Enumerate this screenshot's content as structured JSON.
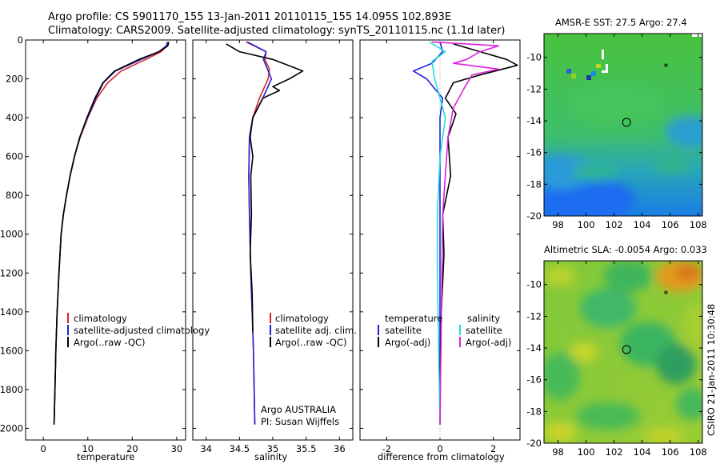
{
  "header": {
    "line1": "Argo profile: CS 5901170_155 13-Jan-2011 20110115_155 14.095S 102.893E",
    "line2": "Climatology: CARS2009. Satellite-adjusted climatology: synTS_20110115.nc (1.1d later)"
  },
  "footer": {
    "stamp": "CSIRO 21-Jan-2011 10:30:48",
    "org_line1": "Argo AUSTRALIA",
    "org_line2": "PI: Susan Wijffels"
  },
  "colors": {
    "climatology": "#dd2222",
    "satellite": "#2222dd",
    "argo": "#000000",
    "sat_salinity": "#22dddd",
    "argo_salinity": "#dd22dd"
  },
  "chart_data": [
    {
      "id": "temperature",
      "type": "line",
      "title": "",
      "xlabel": "temperature",
      "ylabel": "",
      "xlim": [
        -4,
        32
      ],
      "ylim": [
        2060,
        0
      ],
      "x_ticks": [
        0,
        10,
        20,
        30
      ],
      "x_tick_labels": [
        "0",
        "10",
        "20",
        "30"
      ],
      "y_ticks": [
        0,
        200,
        400,
        600,
        800,
        1000,
        1200,
        1400,
        1600,
        1800,
        2000
      ],
      "y_tick_labels": [
        "0",
        "200",
        "400",
        "600",
        "800",
        "1000",
        "1200",
        "1400",
        "1600",
        "1800",
        "2000"
      ],
      "legend": {
        "labels": [
          "climatology",
          "satellite-adjusted climatology",
          "Argo(..raw -QC)"
        ],
        "placement": "lower-middle"
      },
      "series": [
        {
          "name": "climatology",
          "color": "#dd2222",
          "x": [
            27.9,
            27.8,
            26.5,
            23.0,
            17.5,
            14.5,
            12.0,
            10.0,
            8.3,
            7.0,
            6.0,
            5.2,
            4.5,
            4.0,
            3.5,
            3.1,
            2.8,
            2.6,
            2.4
          ],
          "y": [
            10,
            30,
            60,
            100,
            160,
            220,
            300,
            400,
            500,
            600,
            700,
            800,
            900,
            1000,
            1200,
            1400,
            1600,
            1800,
            1980
          ]
        },
        {
          "name": "satellite-adjusted climatology",
          "color": "#2222dd",
          "x": [
            27.9,
            27.7,
            26.0,
            22.0,
            16.2,
            13.5,
            11.8,
            9.9,
            8.2,
            7.0,
            6.0,
            5.2,
            4.5,
            4.0,
            3.5,
            3.1,
            2.8,
            2.6,
            2.4
          ],
          "y": [
            10,
            30,
            60,
            100,
            160,
            220,
            300,
            400,
            500,
            600,
            700,
            800,
            900,
            1000,
            1200,
            1400,
            1600,
            1800,
            1980
          ]
        },
        {
          "name": "Argo(..raw -QC)",
          "color": "#000000",
          "x": [
            28.2,
            28.0,
            26.0,
            21.5,
            16.0,
            13.4,
            11.6,
            9.8,
            8.2,
            7.0,
            6.0,
            5.2,
            4.5,
            4.0,
            3.5,
            3.1,
            2.8,
            2.6,
            2.4
          ],
          "y": [
            10,
            30,
            60,
            100,
            160,
            220,
            300,
            400,
            500,
            600,
            700,
            800,
            900,
            1000,
            1200,
            1400,
            1600,
            1800,
            1980
          ]
        }
      ]
    },
    {
      "id": "salinity",
      "type": "line",
      "xlabel": "salinity",
      "xlim": [
        33.8,
        36.2
      ],
      "ylim": [
        2060,
        0
      ],
      "x_ticks": [
        34,
        34.5,
        35,
        35.5,
        36
      ],
      "x_tick_labels": [
        "34",
        "34.5",
        "35",
        "35.5",
        "36"
      ],
      "legend": {
        "labels": [
          "climatology",
          "satellite adj. clim.",
          "Argo(..raw -QC)"
        ],
        "placement": "lower-middle"
      },
      "series": [
        {
          "name": "climatology",
          "color": "#dd2222",
          "x": [
            34.6,
            34.9,
            34.88,
            34.95,
            34.93,
            34.8,
            34.7,
            34.65,
            34.64,
            34.65,
            34.67,
            34.69,
            34.71,
            34.72,
            34.73
          ],
          "y": [
            10,
            60,
            100,
            150,
            200,
            300,
            400,
            500,
            700,
            900,
            1200,
            1400,
            1600,
            1800,
            1980
          ]
        },
        {
          "name": "satellite adj. clim.",
          "color": "#2222dd",
          "x": [
            34.62,
            34.9,
            34.86,
            34.92,
            34.98,
            34.85,
            34.7,
            34.65,
            34.64,
            34.65,
            34.67,
            34.69,
            34.71,
            34.72,
            34.73
          ],
          "y": [
            10,
            60,
            100,
            150,
            200,
            300,
            400,
            500,
            700,
            900,
            1200,
            1400,
            1600,
            1800,
            1980
          ]
        },
        {
          "name": "Argo(..raw -QC)",
          "color": "#000000",
          "x": [
            34.3,
            34.5,
            35.0,
            35.45,
            35.25,
            35.0,
            35.1,
            34.85,
            34.7,
            34.66,
            34.7,
            34.67,
            34.68,
            34.66,
            34.69,
            34.7
          ],
          "y": [
            20,
            60,
            100,
            160,
            200,
            240,
            260,
            300,
            400,
            500,
            600,
            700,
            900,
            1100,
            1300,
            1500
          ]
        }
      ]
    },
    {
      "id": "difference",
      "type": "line",
      "xlabel": "difference from climatology",
      "xlim": [
        -3,
        3
      ],
      "ylim": [
        2060,
        0
      ],
      "x_ticks": [
        -2,
        0,
        2
      ],
      "x_tick_labels": [
        "-2",
        "0",
        "2"
      ],
      "legend": {
        "temperature_header": "temperature",
        "salinity_header": "salinity",
        "temperature_labels": [
          "satellite",
          "Argo(-adj)"
        ],
        "salinity_labels": [
          "satellite",
          "Argo(-adj)"
        ],
        "placement": "lower-middle"
      },
      "series": [
        {
          "name": "temperature satellite",
          "color": "#2222dd",
          "x": [
            0,
            0.1,
            -0.3,
            -1.0,
            -0.5,
            -0.2,
            0.1,
            0.0,
            0.0,
            0.0,
            0.0
          ],
          "y": [
            10,
            60,
            120,
            160,
            200,
            250,
            300,
            400,
            600,
            1000,
            1980
          ]
        },
        {
          "name": "temperature Argo(-adj)",
          "color": "#000000",
          "x": [
            0.5,
            1.5,
            2.5,
            2.9,
            1.5,
            0.5,
            0.2,
            0.6,
            0.3,
            0.4,
            0.1,
            0.15,
            0.05,
            0.0,
            0.0
          ],
          "y": [
            20,
            60,
            100,
            130,
            180,
            220,
            300,
            380,
            500,
            700,
            900,
            1100,
            1400,
            1700,
            1980
          ]
        },
        {
          "name": "salinity satellite",
          "color": "#22dddd",
          "x": [
            -0.4,
            0.2,
            -0.3,
            -0.2,
            0.0,
            0.2,
            0.0,
            -0.1,
            -0.1,
            -0.05,
            0.0
          ],
          "y": [
            10,
            60,
            110,
            200,
            300,
            400,
            600,
            900,
            1200,
            1600,
            1980
          ]
        },
        {
          "name": "salinity Argo(-adj)",
          "color": "#dd22dd",
          "x": [
            -0.3,
            2.2,
            1.5,
            1.0,
            0.5,
            2.2,
            1.2,
            0.9,
            0.5,
            0.3,
            0.1,
            0.0
          ],
          "y": [
            10,
            30,
            60,
            100,
            120,
            150,
            180,
            250,
            350,
            500,
            900,
            1980
          ]
        }
      ]
    },
    {
      "id": "sst-map",
      "type": "heatmap",
      "title": "AMSR-E SST: 27.5 Argo: 27.4",
      "xlim": [
        97,
        108.3
      ],
      "ylim": [
        -20,
        -8.5
      ],
      "x_ticks": [
        98,
        100,
        102,
        104,
        106,
        108
      ],
      "x_tick_labels": [
        "98",
        "100",
        "102",
        "104",
        "106",
        "108"
      ],
      "y_ticks": [
        -10,
        -12,
        -14,
        -16,
        -18,
        -20
      ],
      "y_tick_labels": [
        "-10",
        "-12",
        "-14",
        "-16",
        "-18",
        "-20"
      ],
      "argo_position": {
        "lon": 102.893,
        "lat": -14.095
      },
      "marker_small": {
        "lon": 105.7,
        "lat": -10.5
      }
    },
    {
      "id": "sla-map",
      "type": "heatmap",
      "title": "Altimetric SLA: -0.0054 Argo: 0.033",
      "xlim": [
        97,
        108.3
      ],
      "ylim": [
        -20,
        -8.5
      ],
      "x_ticks": [
        98,
        100,
        102,
        104,
        106,
        108
      ],
      "x_tick_labels": [
        "98",
        "100",
        "102",
        "104",
        "106",
        "108"
      ],
      "y_ticks": [
        -10,
        -12,
        -14,
        -16,
        -18,
        -20
      ],
      "y_tick_labels": [
        "-10",
        "-12",
        "-14",
        "-16",
        "-18",
        "-20"
      ],
      "argo_position": {
        "lon": 102.893,
        "lat": -14.095
      },
      "marker_small": {
        "lon": 105.7,
        "lat": -10.5
      }
    }
  ]
}
